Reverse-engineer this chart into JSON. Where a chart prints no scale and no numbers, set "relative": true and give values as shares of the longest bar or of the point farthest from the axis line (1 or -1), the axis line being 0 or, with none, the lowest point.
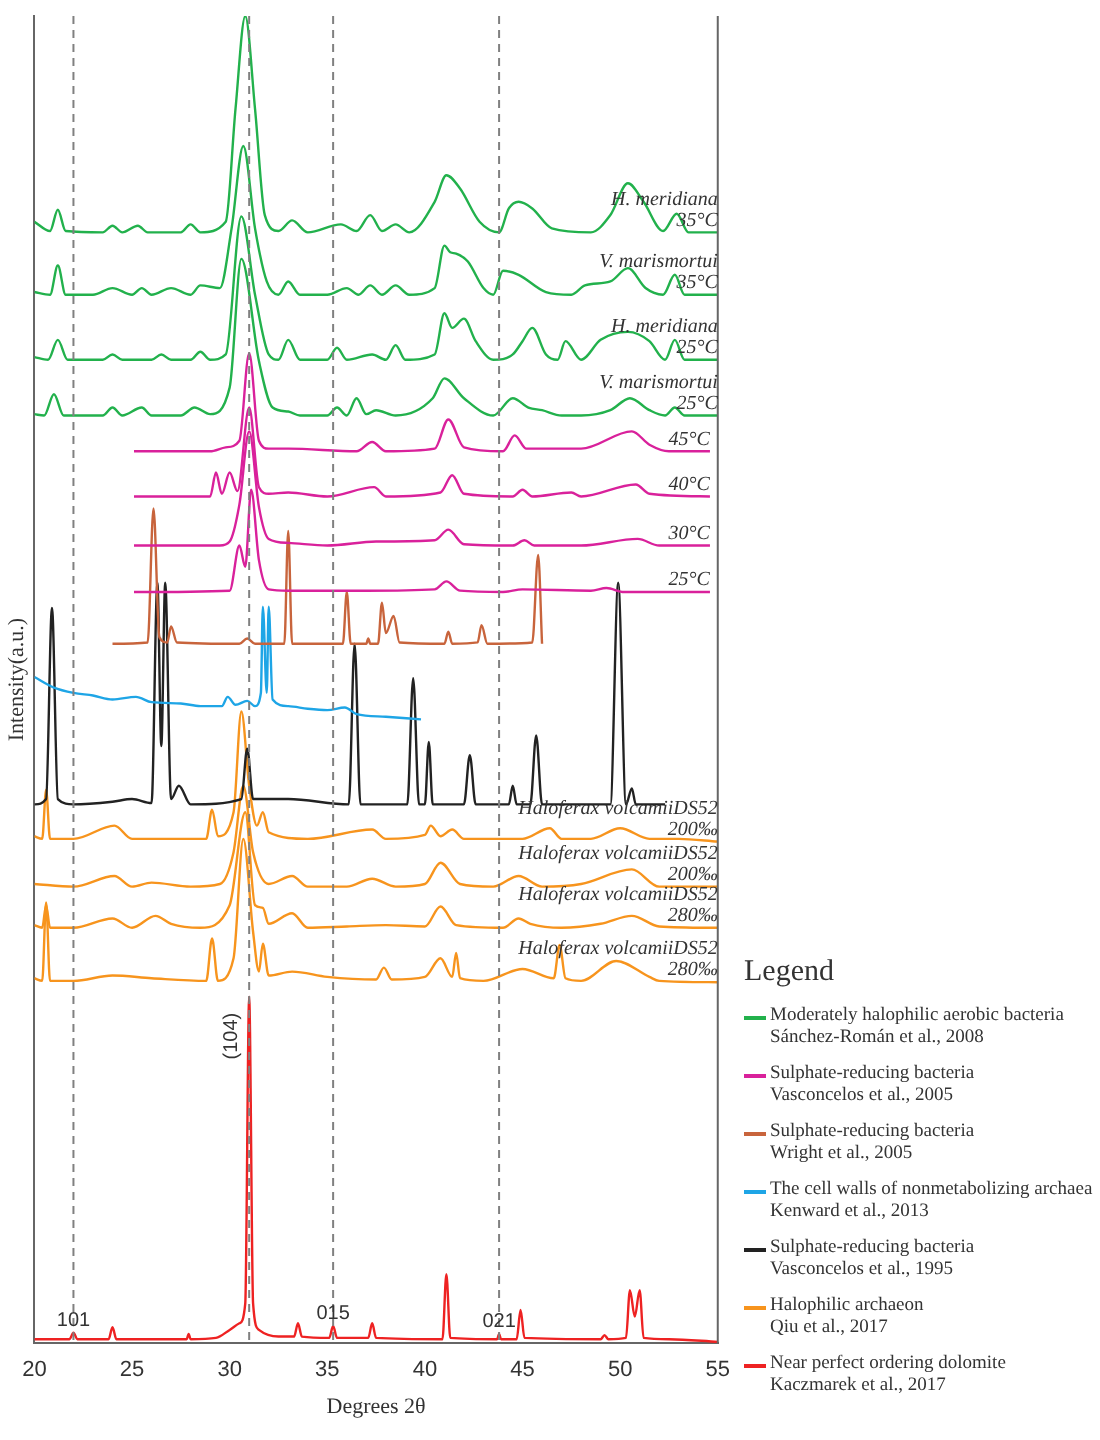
{
  "chart_data": {
    "type": "line",
    "relative": true,
    "xlabel": "Degrees 2θ",
    "ylabel": "Intensity(a.u.)",
    "legend_title": "Legend",
    "legend": "right",
    "grid": false,
    "marker": "none",
    "line_style": "solid",
    "xlim": [
      20,
      55
    ],
    "xticks": [
      20,
      25,
      30,
      35,
      40,
      45,
      50,
      55
    ],
    "series": [
      {
        "name": "Moderately halophilic aerobic bacteria\nSánchez-Román et al., 2008",
        "color": "#22b14c",
        "x": [
          20,
          20.8,
          21.2,
          21.6,
          23.5,
          24,
          24.5,
          25.3,
          25.8,
          27.5,
          28,
          28.5,
          29.8,
          30.3,
          30.8,
          31.3,
          31.8,
          32.5,
          33.2,
          34,
          35.7,
          36.5,
          37.2,
          37.8,
          38.5,
          39.2,
          40.5,
          41.1,
          41.8,
          42.8,
          43.8,
          44.3,
          44.8,
          45.5,
          46.5,
          48.5,
          49.5,
          50.4,
          51.2,
          52.2,
          52.9,
          53.5,
          55
        ],
        "values": [
          0.845,
          0.838,
          0.854,
          0.838,
          0.837,
          0.842,
          0.837,
          0.842,
          0.837,
          0.837,
          0.843,
          0.837,
          0.845,
          0.93,
          1.0,
          0.93,
          0.85,
          0.838,
          0.846,
          0.837,
          0.843,
          0.838,
          0.85,
          0.838,
          0.843,
          0.837,
          0.86,
          0.88,
          0.87,
          0.845,
          0.837,
          0.855,
          0.86,
          0.855,
          0.84,
          0.837,
          0.85,
          0.874,
          0.86,
          0.838,
          0.851,
          0.837,
          0.837
        ]
      },
      {
        "color": "#22b14c",
        "x": [
          20,
          20.8,
          21.2,
          21.6,
          23,
          24,
          25,
          25.5,
          26,
          27,
          28,
          28.5,
          29.5,
          30.1,
          30.7,
          31.3,
          31.9,
          32.5,
          33,
          33.6,
          35,
          36,
          36.6,
          37.2,
          37.8,
          38.5,
          39.2,
          40.5,
          41,
          41.3,
          41.6,
          42.2,
          43,
          43.5,
          44,
          44.8,
          46.2,
          47.5,
          48.2,
          49.5,
          50.4,
          51.3,
          52.2,
          52.8,
          53.3,
          55
        ],
        "values": [
          0.792,
          0.79,
          0.812,
          0.79,
          0.79,
          0.795,
          0.79,
          0.795,
          0.79,
          0.795,
          0.79,
          0.797,
          0.795,
          0.84,
          0.902,
          0.84,
          0.8,
          0.79,
          0.8,
          0.79,
          0.79,
          0.795,
          0.79,
          0.797,
          0.79,
          0.797,
          0.79,
          0.795,
          0.827,
          0.822,
          0.821,
          0.815,
          0.795,
          0.79,
          0.808,
          0.805,
          0.792,
          0.79,
          0.797,
          0.8,
          0.81,
          0.795,
          0.79,
          0.805,
          0.79,
          0.79
        ]
      },
      {
        "color": "#22b14c",
        "x": [
          20,
          20.7,
          21.2,
          21.7,
          23.5,
          24,
          24.5,
          26,
          26.5,
          27,
          28,
          28.5,
          29,
          29.8,
          30.6,
          31.3,
          32,
          32.5,
          33,
          33.6,
          35,
          35.5,
          36,
          37.3,
          38,
          38.5,
          39,
          40.5,
          41,
          41.4,
          42,
          42.6,
          43.5,
          44.5,
          45,
          45.5,
          46.2,
          46.8,
          47.2,
          48,
          49,
          50.4,
          51.5,
          52.3,
          52.8,
          53.3,
          55
        ],
        "values": [
          0.743,
          0.741,
          0.756,
          0.741,
          0.741,
          0.745,
          0.741,
          0.741,
          0.745,
          0.741,
          0.741,
          0.747,
          0.741,
          0.745,
          0.849,
          0.79,
          0.745,
          0.741,
          0.756,
          0.741,
          0.741,
          0.75,
          0.741,
          0.745,
          0.741,
          0.752,
          0.741,
          0.745,
          0.776,
          0.765,
          0.772,
          0.755,
          0.741,
          0.745,
          0.755,
          0.765,
          0.745,
          0.741,
          0.755,
          0.741,
          0.756,
          0.762,
          0.755,
          0.741,
          0.756,
          0.741,
          0.741
        ]
      },
      {
        "color": "#22b14c",
        "x": [
          20,
          20.5,
          21,
          21.5,
          23.5,
          24,
          24.5,
          25.5,
          26,
          27.5,
          28.2,
          29,
          30,
          30.6,
          31.5,
          32.2,
          33,
          33.6,
          35,
          35.5,
          36,
          36.5,
          37,
          37.5,
          38.5,
          40.4,
          41,
          42,
          43.5,
          44.5,
          45.3,
          46,
          47,
          48,
          49.5,
          50.5,
          51.5,
          52.3,
          52.8,
          53.3,
          55
        ],
        "values": [
          0.7,
          0.699,
          0.715,
          0.699,
          0.699,
          0.705,
          0.699,
          0.705,
          0.699,
          0.699,
          0.705,
          0.7,
          0.72,
          0.817,
          0.74,
          0.705,
          0.702,
          0.699,
          0.699,
          0.705,
          0.699,
          0.712,
          0.7,
          0.703,
          0.699,
          0.712,
          0.727,
          0.712,
          0.699,
          0.712,
          0.705,
          0.703,
          0.699,
          0.699,
          0.703,
          0.712,
          0.703,
          0.699,
          0.705,
          0.699,
          0.699
        ]
      },
      {
        "name": "Sulphate-reducing bacteria\nVasconcelos et al., 2005",
        "color": "#d9219b",
        "x": [
          25.1,
          29,
          29.8,
          30.5,
          31,
          31.5,
          32,
          33,
          36.5,
          37.3,
          38,
          40.5,
          41.2,
          42,
          44,
          44.6,
          45.2,
          48,
          50.6,
          51.5,
          52.5,
          54.6
        ],
        "values": [
          0.672,
          0.672,
          0.675,
          0.68,
          0.746,
          0.68,
          0.674,
          0.674,
          0.672,
          0.679,
          0.672,
          0.674,
          0.696,
          0.675,
          0.672,
          0.684,
          0.674,
          0.674,
          0.687,
          0.677,
          0.672,
          0.672
        ]
      },
      {
        "color": "#d9219b",
        "x": [
          25.1,
          29,
          29.3,
          29.6,
          30,
          30.4,
          31,
          31.5,
          32,
          33,
          35,
          37.4,
          38,
          40.8,
          41.4,
          42,
          44.5,
          45,
          45.5,
          47.5,
          48,
          50.8,
          51.5,
          54.6
        ],
        "values": [
          0.638,
          0.638,
          0.656,
          0.64,
          0.656,
          0.642,
          0.705,
          0.645,
          0.64,
          0.641,
          0.638,
          0.645,
          0.638,
          0.641,
          0.654,
          0.64,
          0.638,
          0.643,
          0.638,
          0.641,
          0.638,
          0.647,
          0.64,
          0.638
        ]
      },
      {
        "color": "#d9219b",
        "x": [
          25.1,
          29.5,
          30,
          30.5,
          31,
          31.5,
          32,
          33,
          35,
          37.5,
          40.5,
          41.2,
          42,
          44.5,
          45.1,
          45.6,
          48,
          50.9,
          52,
          54.6
        ],
        "values": [
          0.601,
          0.601,
          0.604,
          0.632,
          0.687,
          0.63,
          0.606,
          0.603,
          0.601,
          0.604,
          0.605,
          0.613,
          0.602,
          0.601,
          0.605,
          0.601,
          0.601,
          0.606,
          0.601,
          0.601
        ]
      },
      {
        "color": "#d9219b",
        "x": [
          25.1,
          30,
          30.5,
          30.8,
          31.1,
          31.5,
          32,
          33,
          37,
          40.5,
          41.1,
          41.8,
          44,
          45,
          48.5,
          49.3,
          50.2,
          54.6
        ],
        "values": [
          0.566,
          0.567,
          0.601,
          0.585,
          0.643,
          0.59,
          0.568,
          0.567,
          0.567,
          0.568,
          0.574,
          0.567,
          0.566,
          0.568,
          0.567,
          0.569,
          0.566,
          0.566
        ]
      },
      {
        "name": "Sulphate-reducing bacteria\nWright et al., 2005",
        "color": "#c8643c",
        "x": [
          24,
          25.8,
          26.1,
          26.4,
          26.8,
          27,
          27.3,
          30.5,
          30.9,
          31.3,
          32.8,
          33,
          33.2,
          35.8,
          36,
          36.2,
          37,
          37.1,
          37.2,
          37.6,
          37.8,
          38,
          38.4,
          38.7,
          41,
          41.2,
          41.4,
          42.7,
          42.9,
          43.2,
          45.5,
          45.8,
          46
        ],
        "values": [
          0.527,
          0.528,
          0.629,
          0.532,
          0.528,
          0.54,
          0.528,
          0.527,
          0.531,
          0.527,
          0.527,
          0.612,
          0.527,
          0.527,
          0.566,
          0.527,
          0.527,
          0.531,
          0.527,
          0.527,
          0.558,
          0.535,
          0.548,
          0.528,
          0.527,
          0.536,
          0.527,
          0.528,
          0.541,
          0.527,
          0.528,
          0.594,
          0.527
        ]
      },
      {
        "name": "The cell walls of nonmetabolizing archaea\nKenward et al., 2013",
        "color": "#1ea5e6",
        "x": [
          20,
          21,
          22,
          23,
          24,
          25.2,
          26,
          27.5,
          28.5,
          29.6,
          29.9,
          30.3,
          30.9,
          31.3,
          31.6,
          31.7,
          31.9,
          32,
          32.2,
          33,
          34,
          35,
          35.9,
          36.5,
          38,
          39.8
        ],
        "values": [
          0.502,
          0.494,
          0.49,
          0.488,
          0.485,
          0.487,
          0.483,
          0.482,
          0.48,
          0.48,
          0.487,
          0.481,
          0.484,
          0.48,
          0.49,
          0.555,
          0.49,
          0.555,
          0.485,
          0.48,
          0.478,
          0.477,
          0.479,
          0.474,
          0.472,
          0.47
        ]
      },
      {
        "name": "Sulphate-reducing bacteria\nVasconcelos et al., 1995",
        "color": "#222222",
        "x": [
          20,
          20.6,
          20.9,
          21.2,
          22,
          24,
          25,
          26,
          26.3,
          26.5,
          26.7,
          27,
          27.4,
          28,
          30.6,
          30.9,
          31.2,
          33,
          36.1,
          36.4,
          36.7,
          39.1,
          39.4,
          39.7,
          40,
          40.2,
          40.4,
          42,
          42.3,
          42.6,
          44.3,
          44.5,
          44.7,
          45.4,
          45.7,
          46,
          49.5,
          49.9,
          50.3,
          50.6,
          50.8,
          52.3
        ],
        "values": [
          0.406,
          0.41,
          0.554,
          0.41,
          0.406,
          0.408,
          0.41,
          0.407,
          0.573,
          0.45,
          0.573,
          0.41,
          0.42,
          0.406,
          0.41,
          0.448,
          0.41,
          0.41,
          0.406,
          0.527,
          0.406,
          0.406,
          0.501,
          0.406,
          0.406,
          0.453,
          0.406,
          0.406,
          0.443,
          0.406,
          0.406,
          0.42,
          0.406,
          0.406,
          0.458,
          0.406,
          0.406,
          0.573,
          0.406,
          0.418,
          0.406,
          0.406
        ]
      },
      {
        "name": "Halophilic archaeon\nQiu et al., 2017",
        "color": "#f7941d",
        "x": [
          20,
          20.4,
          20.6,
          20.8,
          22,
          24.1,
          25,
          28.8,
          29.1,
          29.4,
          30.2,
          30.6,
          31,
          31.4,
          31.7,
          32,
          34,
          37.3,
          38,
          40,
          40.3,
          40.8,
          41.4,
          42,
          45,
          46.4,
          47,
          48.5,
          50,
          51.5,
          53,
          55
        ],
        "values": [
          0.382,
          0.38,
          0.417,
          0.38,
          0.38,
          0.39,
          0.38,
          0.38,
          0.402,
          0.382,
          0.4,
          0.476,
          0.42,
          0.39,
          0.4,
          0.385,
          0.38,
          0.387,
          0.38,
          0.383,
          0.39,
          0.382,
          0.387,
          0.38,
          0.38,
          0.388,
          0.38,
          0.38,
          0.388,
          0.38,
          0.38,
          0.378
        ]
      },
      {
        "color": "#f7941d",
        "x": [
          20,
          22,
          24.1,
          25,
          26,
          28,
          29.5,
          30.2,
          30.7,
          31.2,
          32,
          33.2,
          34,
          36,
          37.3,
          38.5,
          40,
          40.8,
          41.8,
          43.5,
          44.8,
          46,
          48,
          50.6,
          52,
          55
        ],
        "values": [
          0.346,
          0.344,
          0.352,
          0.344,
          0.347,
          0.344,
          0.346,
          0.37,
          0.42,
          0.37,
          0.346,
          0.352,
          0.344,
          0.344,
          0.35,
          0.344,
          0.346,
          0.362,
          0.346,
          0.344,
          0.352,
          0.344,
          0.346,
          0.357,
          0.344,
          0.344
        ]
      },
      {
        "color": "#f7941d",
        "x": [
          20,
          20.4,
          20.6,
          20.8,
          22,
          24,
          25,
          26.2,
          27,
          28.5,
          30,
          30.8,
          31.3,
          31.7,
          32,
          33.2,
          34,
          36,
          38,
          40,
          40.8,
          41.6,
          44,
          44.8,
          45.4,
          47,
          49,
          50.6,
          52,
          55
        ],
        "values": [
          0.315,
          0.313,
          0.33,
          0.313,
          0.313,
          0.32,
          0.313,
          0.322,
          0.316,
          0.313,
          0.33,
          0.4,
          0.33,
          0.328,
          0.316,
          0.324,
          0.313,
          0.314,
          0.315,
          0.314,
          0.329,
          0.315,
          0.313,
          0.32,
          0.316,
          0.313,
          0.316,
          0.322,
          0.314,
          0.313
        ]
      },
      {
        "color": "#f7941d",
        "x": [
          20,
          20.4,
          20.6,
          20.8,
          22,
          24,
          26,
          28.8,
          29.1,
          29.4,
          30.2,
          30.7,
          31.2,
          31.5,
          31.7,
          32,
          33.2,
          35,
          37.5,
          37.9,
          38.3,
          40,
          40.8,
          41.4,
          41.6,
          41.8,
          43,
          45,
          46.6,
          46.9,
          47.2,
          48,
          49.8,
          51.5,
          52,
          55
        ],
        "values": [
          0.275,
          0.273,
          0.332,
          0.273,
          0.273,
          0.277,
          0.275,
          0.273,
          0.305,
          0.273,
          0.29,
          0.38,
          0.31,
          0.28,
          0.301,
          0.277,
          0.28,
          0.276,
          0.274,
          0.283,
          0.274,
          0.276,
          0.29,
          0.276,
          0.294,
          0.275,
          0.273,
          0.282,
          0.275,
          0.3,
          0.275,
          0.273,
          0.288,
          0.276,
          0.273,
          0.272
        ]
      },
      {
        "name": "Near perfect ordering dolomite\nKaczmarek et al., 2017",
        "color": "#ee2222",
        "x": [
          20,
          21.8,
          22,
          22.2,
          23.8,
          24,
          24.2,
          27.8,
          27.9,
          28,
          29.3,
          30,
          30.5,
          30.8,
          31,
          31.2,
          31.5,
          32.5,
          33.3,
          33.5,
          33.7,
          35.1,
          35.3,
          35.5,
          37.1,
          37.3,
          37.5,
          40.9,
          41.1,
          41.3,
          43.7,
          43.8,
          43.9,
          44.7,
          44.9,
          45.1,
          49,
          49.2,
          49.4,
          50.3,
          50.5,
          50.75,
          51,
          51.2,
          52.5,
          55
        ],
        "values": [
          0.003,
          0.003,
          0.008,
          0.003,
          0.003,
          0.012,
          0.003,
          0.003,
          0.007,
          0.003,
          0.004,
          0.01,
          0.015,
          0.03,
          0.261,
          0.03,
          0.01,
          0.005,
          0.005,
          0.015,
          0.005,
          0.004,
          0.013,
          0.004,
          0.004,
          0.015,
          0.004,
          0.003,
          0.052,
          0.004,
          0.003,
          0.007,
          0.003,
          0.003,
          0.025,
          0.004,
          0.003,
          0.006,
          0.003,
          0.004,
          0.04,
          0.02,
          0.04,
          0.004,
          0.003,
          0.001
        ]
      }
    ],
    "ref_lines": [
      {
        "axis": "x",
        "value": 22,
        "color": "#808080",
        "line_style": "dashed"
      },
      {
        "axis": "x",
        "value": 31,
        "color": "#808080",
        "line_style": "dashed"
      },
      {
        "axis": "x",
        "value": 35.3,
        "color": "#808080",
        "line_style": "dashed"
      },
      {
        "axis": "x",
        "value": 43.8,
        "color": "#808080",
        "line_style": "dashed"
      }
    ],
    "annotations": [
      {
        "text": "H. meridiana",
        "x": 55,
        "y": 0.837
      },
      {
        "text": "35°C",
        "x": 55,
        "y": 0.837
      },
      {
        "text": "V. marismortui",
        "x": 55,
        "y": 0.79
      },
      {
        "text": "35°C",
        "x": 55,
        "y": 0.79
      },
      {
        "text": "H. meridiana",
        "x": 55,
        "y": 0.741
      },
      {
        "text": "25°C",
        "x": 55,
        "y": 0.741
      },
      {
        "text": "V. marismortui",
        "x": 55,
        "y": 0.699
      },
      {
        "text": "25°C",
        "x": 55,
        "y": 0.699
      },
      {
        "text": "45°C",
        "x": 54.6,
        "y": 0.672
      },
      {
        "text": "40°C",
        "x": 54.6,
        "y": 0.638
      },
      {
        "text": "30°C",
        "x": 54.6,
        "y": 0.601
      },
      {
        "text": "25°C",
        "x": 54.6,
        "y": 0.566
      },
      {
        "text": "Haloferax volcamiiDS52",
        "x": 55,
        "y": 0.378
      },
      {
        "text": "200‰",
        "x": 55,
        "y": 0.378
      },
      {
        "text": "Haloferax volcamiiDS52",
        "x": 55,
        "y": 0.344
      },
      {
        "text": "200‰",
        "x": 55,
        "y": 0.344
      },
      {
        "text": "Haloferax volcamiiDS52",
        "x": 55,
        "y": 0.313
      },
      {
        "text": "280‰",
        "x": 55,
        "y": 0.313
      },
      {
        "text": "Haloferax volcamiiDS52",
        "x": 55,
        "y": 0.272
      },
      {
        "text": "280‰",
        "x": 55,
        "y": 0.272
      },
      {
        "text": "101",
        "x": 22,
        "y": 0.008
      },
      {
        "text": "(104)",
        "x": 31,
        "y": 0.261
      },
      {
        "text": "015",
        "x": 35.3,
        "y": 0.013
      },
      {
        "text": "021",
        "x": 43.8,
        "y": 0.007
      }
    ]
  }
}
